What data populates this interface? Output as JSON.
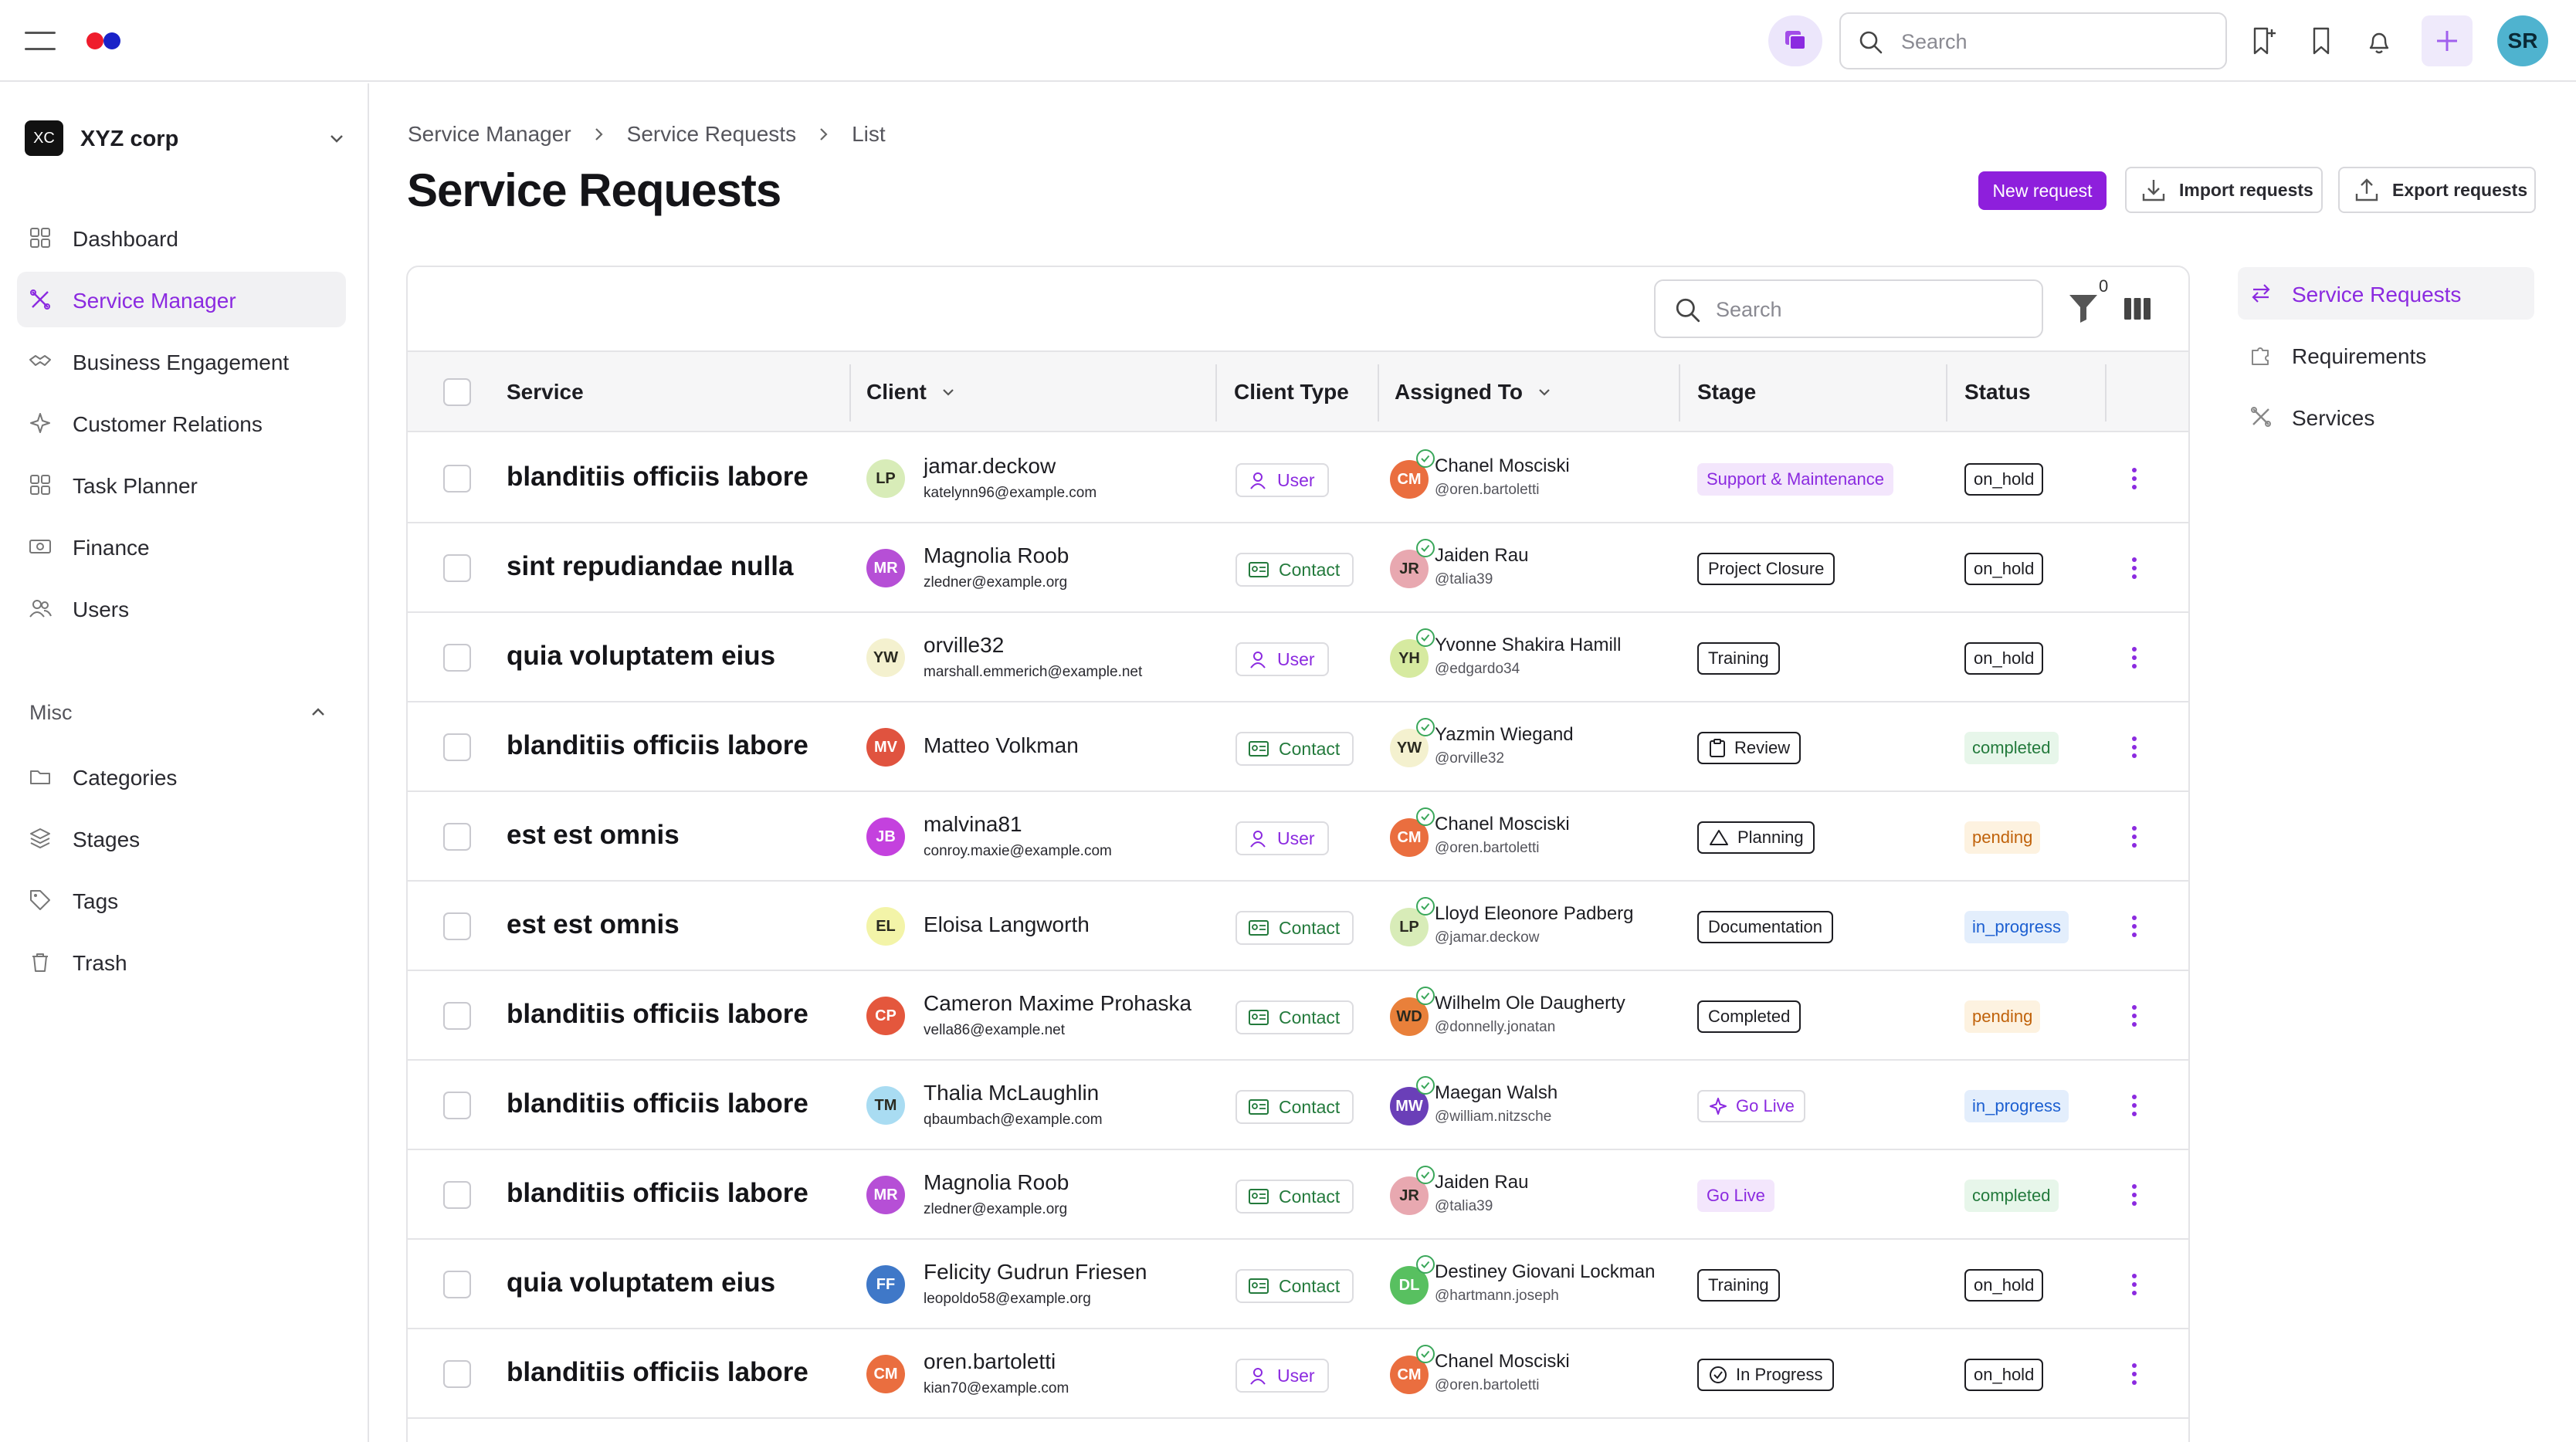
{
  "topbar": {
    "search_placeholder": "Search",
    "avatar_initials": "SR"
  },
  "sidebar": {
    "org_badge": "XC",
    "org_name": "XYZ corp",
    "items": [
      {
        "label": "Dashboard",
        "icon": "grid-icon"
      },
      {
        "label": "Service Manager",
        "icon": "tools-icon",
        "active": true
      },
      {
        "label": "Business Engagement",
        "icon": "handshake-icon"
      },
      {
        "label": "Customer Relations",
        "icon": "sparkle-icon"
      },
      {
        "label": "Task Planner",
        "icon": "grid-icon"
      },
      {
        "label": "Finance",
        "icon": "money-icon"
      },
      {
        "label": "Users",
        "icon": "users-icon"
      }
    ],
    "misc_label": "Misc",
    "misc_items": [
      {
        "label": "Categories",
        "icon": "folder-icon"
      },
      {
        "label": "Stages",
        "icon": "layers-icon"
      },
      {
        "label": "Tags",
        "icon": "tag-icon"
      },
      {
        "label": "Trash",
        "icon": "trash-icon"
      }
    ]
  },
  "breadcrumb": [
    "Service Manager",
    "Service Requests",
    "List"
  ],
  "page_title": "Service Requests",
  "actions": {
    "new_request": "New request",
    "import_requests": "Import requests",
    "export_requests": "Export requests"
  },
  "table": {
    "search_placeholder": "Search",
    "filter_count": "0",
    "columns": {
      "service": "Service",
      "client": "Client",
      "client_type": "Client Type",
      "assigned_to": "Assigned To",
      "stage": "Stage",
      "status": "Status"
    },
    "rows": [
      {
        "service": "blanditiis officiis labore",
        "client_initials": "LP",
        "client_color": "#d8ecb8",
        "client_name": "jamar.deckow",
        "client_email": "katelynn96@example.com",
        "client_type": "User",
        "assignee_initials": "CM",
        "assignee_color": "#ea6e3f",
        "assignee_name": "Chanel Mosciski",
        "assignee_handle": "@oren.bartoletti",
        "stage": "Support & Maintenance",
        "stage_style": "sup",
        "stage_icon": "",
        "status": "on_hold"
      },
      {
        "service": "sint repudiandae nulla",
        "client_initials": "MR",
        "client_color": "#b64fd6",
        "client_name": "Magnolia Roob",
        "client_email": "zledner@example.org",
        "client_type": "Contact",
        "assignee_initials": "JR",
        "assignee_color": "#e8a8b0",
        "assignee_name": "Jaiden Rau",
        "assignee_handle": "@talia39",
        "stage": "Project Closure",
        "stage_style": "outline",
        "stage_icon": "",
        "status": "on_hold"
      },
      {
        "service": "quia voluptatem eius",
        "client_initials": "YW",
        "client_color": "#f4f1cf",
        "client_name": "orville32",
        "client_email": "marshall.emmerich@example.net",
        "client_type": "User",
        "assignee_initials": "YH",
        "assignee_color": "#d6eaa0",
        "assignee_name": "Yvonne Shakira Hamill",
        "assignee_handle": "@edgardo34",
        "stage": "Training",
        "stage_style": "outline",
        "stage_icon": "",
        "status": "on_hold"
      },
      {
        "service": "blanditiis officiis labore",
        "client_initials": "MV",
        "client_color": "#e0533f",
        "client_name": "Matteo Volkman",
        "client_email": "",
        "client_type": "Contact",
        "assignee_initials": "YW",
        "assignee_color": "#f4f1cf",
        "assignee_name": "Yazmin Wiegand",
        "assignee_handle": "@orville32",
        "stage": "Review",
        "stage_style": "outline",
        "stage_icon": "clipboard-icon",
        "status": "completed"
      },
      {
        "service": "est est omnis",
        "client_initials": "JB",
        "client_color": "#c441de",
        "client_name": "malvina81",
        "client_email": "conroy.maxie@example.com",
        "client_type": "User",
        "assignee_initials": "CM",
        "assignee_color": "#ea6e3f",
        "assignee_name": "Chanel Mosciski",
        "assignee_handle": "@oren.bartoletti",
        "stage": "Planning",
        "stage_style": "outline",
        "stage_icon": "planning-icon",
        "status": "pending"
      },
      {
        "service": "est est omnis",
        "client_initials": "EL",
        "client_color": "#f3f4a8",
        "client_name": "Eloisa Langworth",
        "client_email": "",
        "client_type": "Contact",
        "assignee_initials": "LP",
        "assignee_color": "#d8ecb8",
        "assignee_name": "Lloyd Eleonore Padberg",
        "assignee_handle": "@jamar.deckow",
        "stage": "Documentation",
        "stage_style": "outline",
        "stage_icon": "",
        "status": "in_progress"
      },
      {
        "service": "blanditiis officiis labore",
        "client_initials": "CP",
        "client_color": "#e4573d",
        "client_name": "Cameron Maxime Prohaska",
        "client_email": "vella86@example.net",
        "client_type": "Contact",
        "assignee_initials": "WD",
        "assignee_color": "#e9803a",
        "assignee_name": "Wilhelm Ole Daugherty",
        "assignee_handle": "@donnelly.jonatan",
        "stage": "Completed",
        "stage_style": "outline",
        "stage_icon": "",
        "status": "pending"
      },
      {
        "service": "blanditiis officiis labore",
        "client_initials": "TM",
        "client_color": "#a9dcf2",
        "client_name": "Thalia McLaughlin",
        "client_email": "qbaumbach@example.com",
        "client_type": "Contact",
        "assignee_initials": "MW",
        "assignee_color": "#6a3fb8",
        "assignee_name": "Maegan Walsh",
        "assignee_handle": "@william.nitzsche",
        "stage": "Go Live",
        "stage_style": "golive-o",
        "stage_icon": "sparkle-icon",
        "status": "in_progress"
      },
      {
        "service": "blanditiis officiis labore",
        "client_initials": "MR",
        "client_color": "#b64fd6",
        "client_name": "Magnolia Roob",
        "client_email": "zledner@example.org",
        "client_type": "Contact",
        "assignee_initials": "JR",
        "assignee_color": "#e8a8b0",
        "assignee_name": "Jaiden Rau",
        "assignee_handle": "@talia39",
        "stage": "Go Live",
        "stage_style": "golive-f",
        "stage_icon": "",
        "status": "completed"
      },
      {
        "service": "quia voluptatem eius",
        "client_initials": "FF",
        "client_color": "#3f78c8",
        "client_name": "Felicity Gudrun Friesen",
        "client_email": "leopoldo58@example.org",
        "client_type": "Contact",
        "assignee_initials": "DL",
        "assignee_color": "#58c060",
        "assignee_name": "Destiney Giovani Lockman",
        "assignee_handle": "@hartmann.joseph",
        "stage": "Training",
        "stage_style": "outline",
        "stage_icon": "",
        "status": "on_hold"
      },
      {
        "service": "blanditiis officiis labore",
        "client_initials": "CM",
        "client_color": "#ea6e3f",
        "client_name": "oren.bartoletti",
        "client_email": "kian70@example.com",
        "client_type": "User",
        "assignee_initials": "CM",
        "assignee_color": "#ea6e3f",
        "assignee_name": "Chanel Mosciski",
        "assignee_handle": "@oren.bartoletti",
        "stage": "In Progress",
        "stage_style": "outline",
        "stage_icon": "check-circle-icon",
        "status": "on_hold"
      }
    ]
  },
  "right_nav": [
    {
      "label": "Service Requests",
      "icon": "swap-icon",
      "active": true
    },
    {
      "label": "Requirements",
      "icon": "puzzle-icon"
    },
    {
      "label": "Services",
      "icon": "tools-icon"
    }
  ]
}
